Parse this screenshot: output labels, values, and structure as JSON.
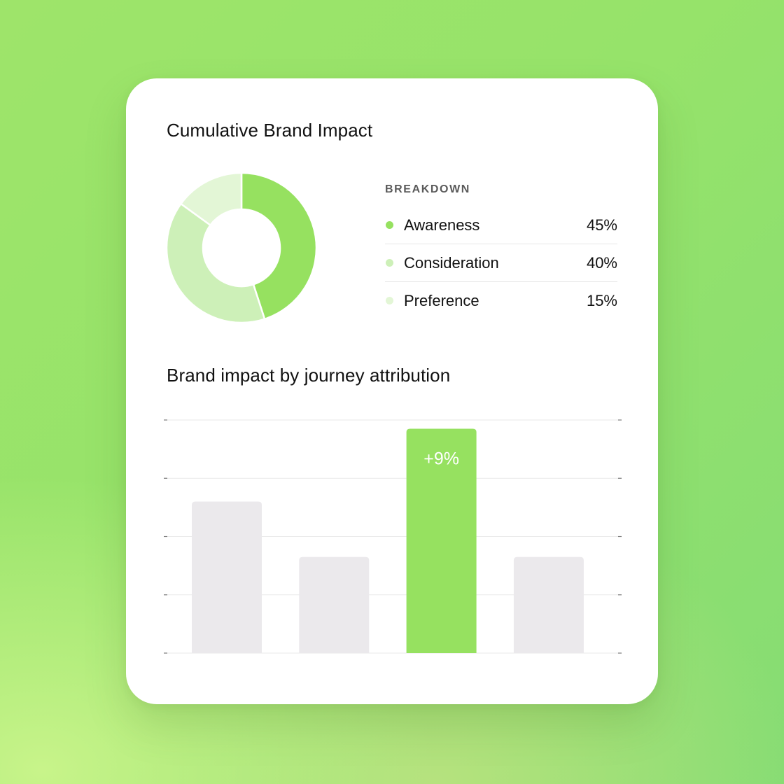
{
  "card": {
    "title": "Cumulative Brand Impact",
    "breakdown_label": "BREAKDOWN",
    "bar_title": "Brand impact by journey attribution"
  },
  "colors": {
    "background": "#9be46b",
    "accent": "#96e160",
    "accent_light": "#cdf0b8",
    "accent_lighter": "#e3f6d6",
    "bar_neutral": "#ebe9ec",
    "grid": "#e9e9e9"
  },
  "chart_data": [
    {
      "type": "pie",
      "variant": "donut",
      "title": "Cumulative Brand Impact",
      "legend_title": "BREAKDOWN",
      "legend_placement": "right",
      "slices": [
        {
          "label": "Awareness",
          "value": 45,
          "display": "45%",
          "color": "#96e160"
        },
        {
          "label": "Consideration",
          "value": 40,
          "display": "40%",
          "color": "#cdf0b8"
        },
        {
          "label": "Preference",
          "value": 15,
          "display": "15%",
          "color": "#e3f6d6"
        }
      ]
    },
    {
      "type": "bar",
      "title": "Brand impact by journey attribution",
      "categories": [
        "",
        "",
        "",
        ""
      ],
      "values": [
        2.6,
        1.65,
        3.85,
        1.65
      ],
      "ylim": [
        0,
        4
      ],
      "grid": true,
      "highlight_index": 2,
      "highlight_label": "+9%",
      "colors": [
        "#ebe9ec",
        "#ebe9ec",
        "#96e160",
        "#ebe9ec"
      ]
    }
  ]
}
